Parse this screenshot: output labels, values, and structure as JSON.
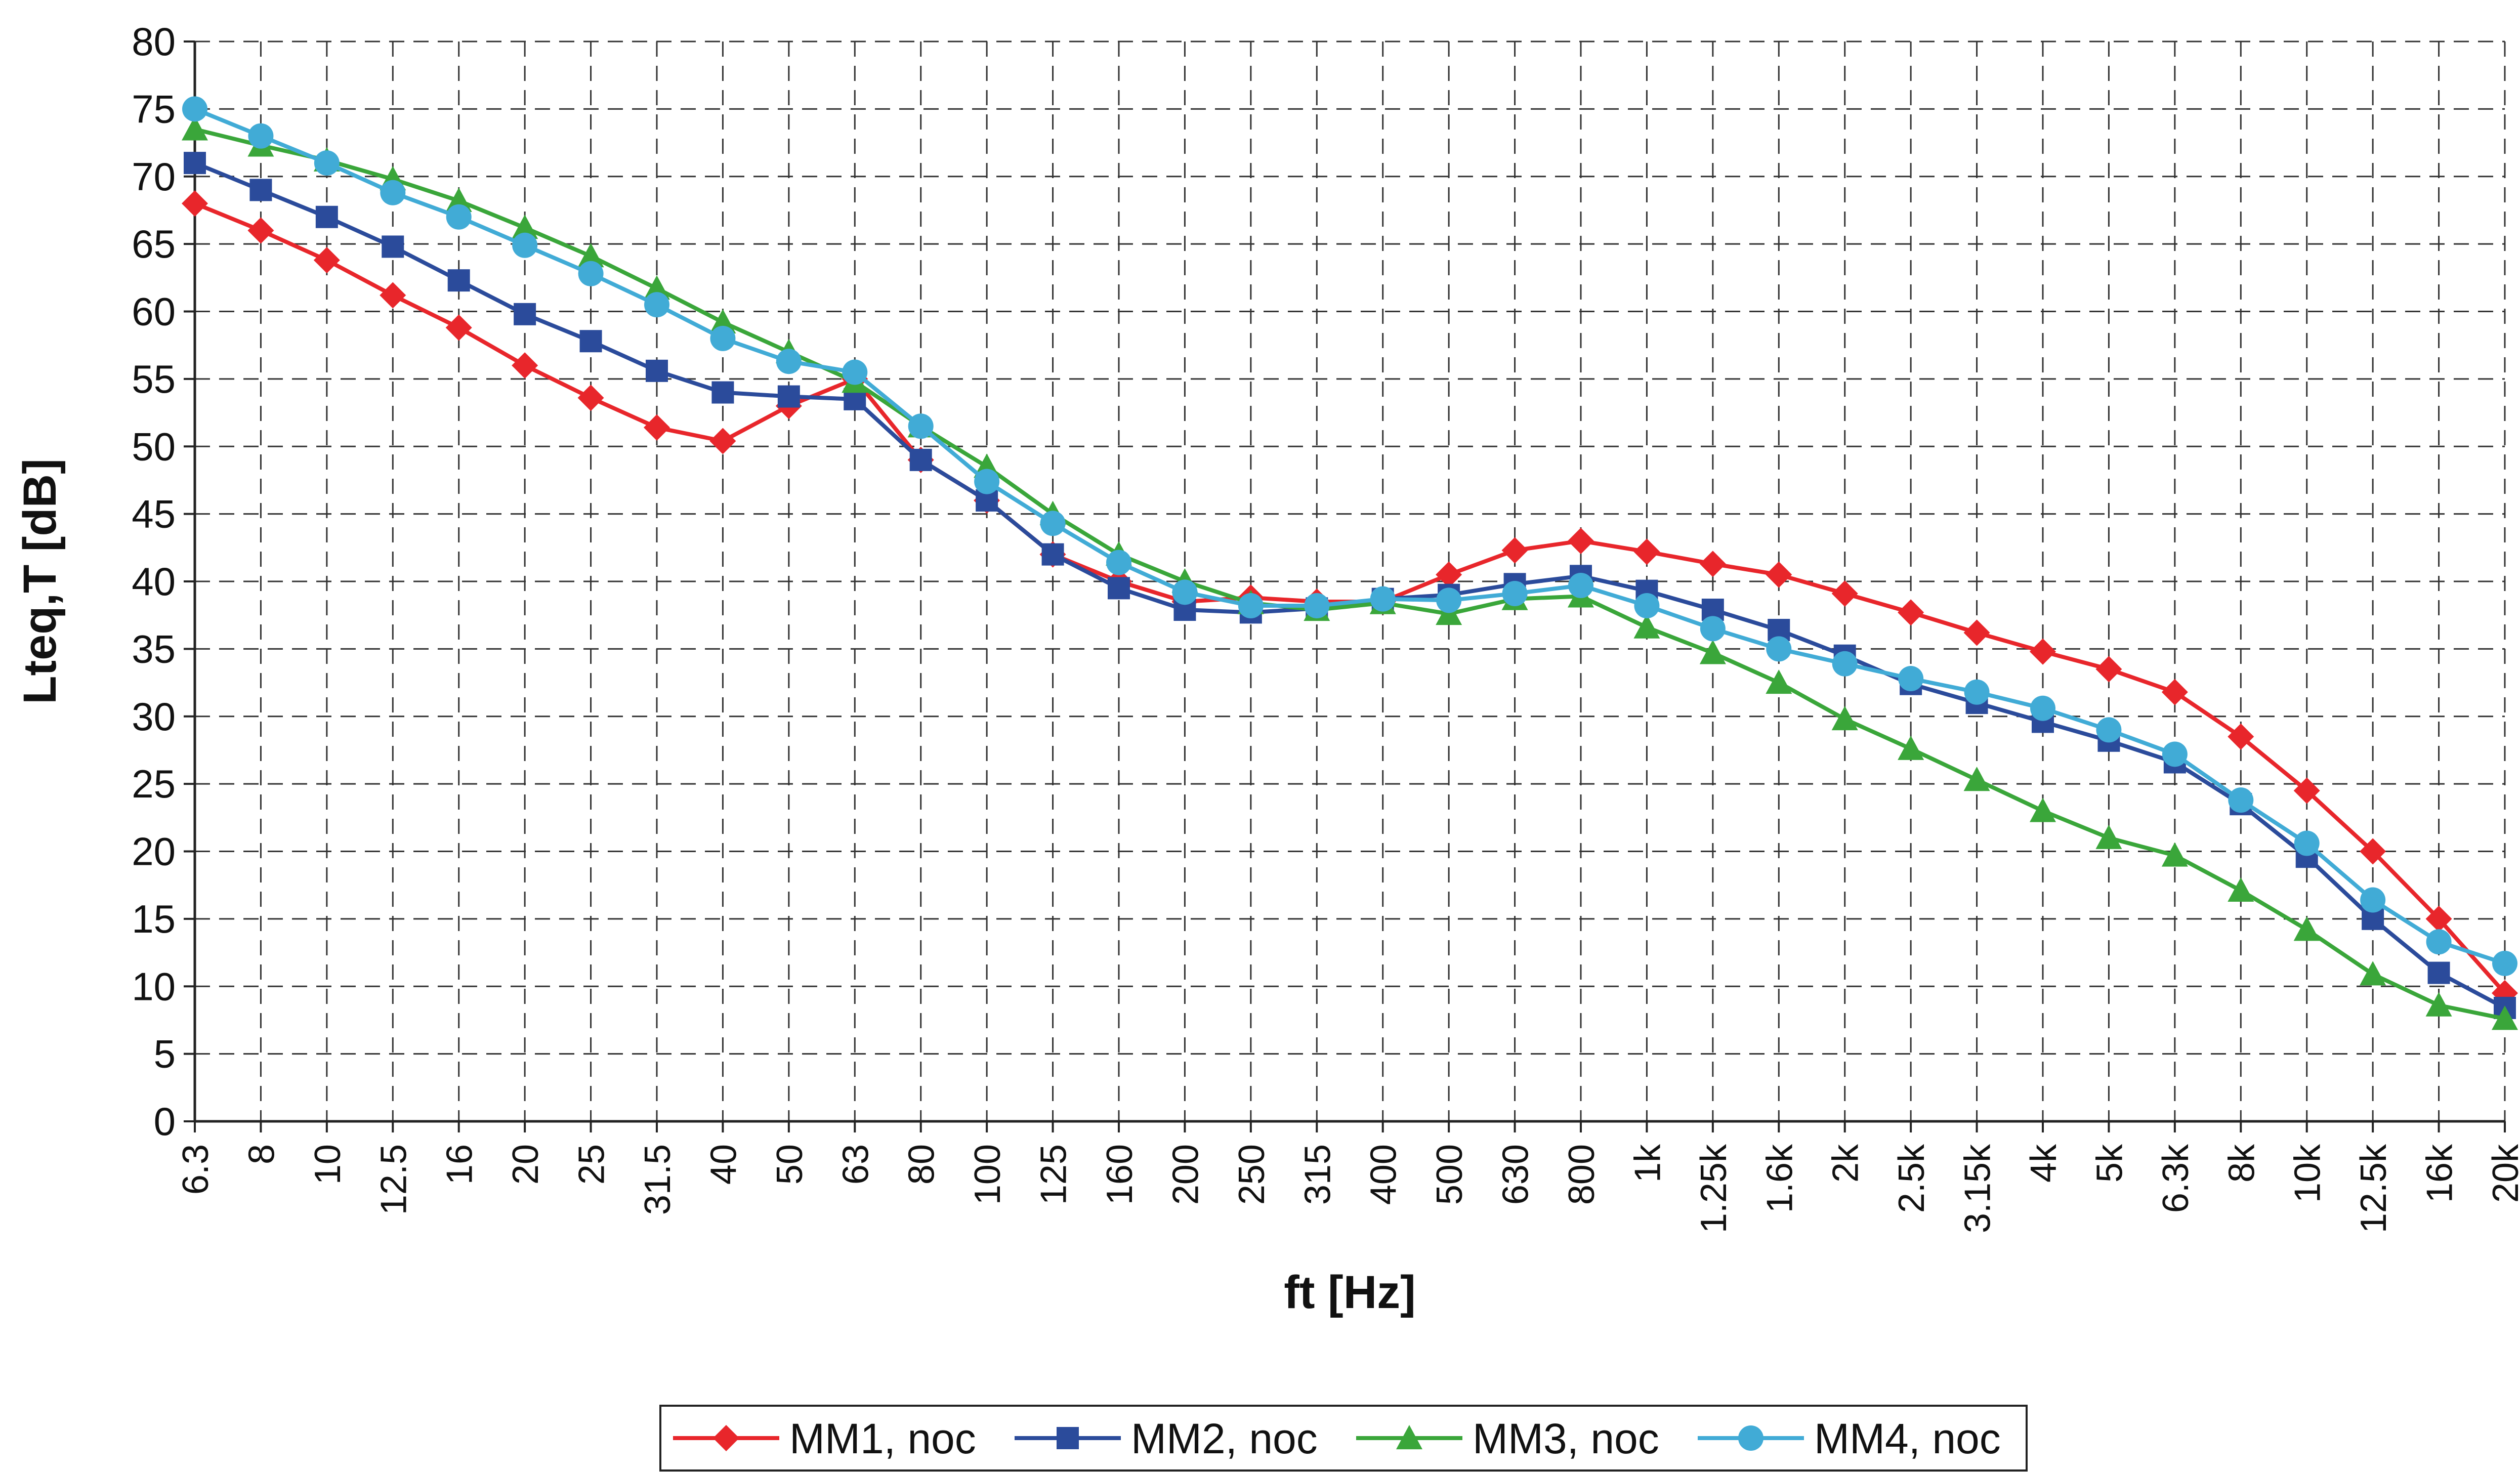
{
  "chart_data": {
    "type": "line",
    "title": "",
    "xlabel": "ft [Hz]",
    "ylabel": "Lteq,T [dB]",
    "ylim": [
      0,
      80
    ],
    "yticks": [
      0,
      5,
      10,
      15,
      20,
      25,
      30,
      35,
      40,
      45,
      50,
      55,
      60,
      65,
      70,
      75,
      80
    ],
    "grid": true,
    "legend_position": "bottom",
    "categories": [
      "6.3",
      "8",
      "10",
      "12.5",
      "16",
      "20",
      "25",
      "31.5",
      "40",
      "50",
      "63",
      "80",
      "100",
      "125",
      "160",
      "200",
      "250",
      "315",
      "400",
      "500",
      "630",
      "800",
      "1k",
      "1.25k",
      "1.6k",
      "2k",
      "2.5k",
      "3.15k",
      "4k",
      "5k",
      "6.3k",
      "8k",
      "10k",
      "12.5k",
      "16k",
      "20k"
    ],
    "series": [
      {
        "name": "MM1, noc",
        "color": "#e8262b",
        "marker": "diamond",
        "values": [
          68,
          66,
          63.8,
          61.2,
          58.8,
          56,
          53.6,
          51.4,
          50.4,
          53,
          55,
          49,
          46,
          42,
          40,
          38.5,
          38.8,
          38.5,
          38.5,
          40.5,
          42.3,
          43,
          42.2,
          41.3,
          40.5,
          39.1,
          37.7,
          36.2,
          34.8,
          33.5,
          31.8,
          28.5,
          24.5,
          20,
          15,
          9.5
        ]
      },
      {
        "name": "MM2, noc",
        "color": "#2b4b9b",
        "marker": "square",
        "values": [
          71,
          69,
          67,
          64.8,
          62.3,
          59.8,
          57.8,
          55.6,
          54,
          53.7,
          53.5,
          49,
          46,
          42,
          39.5,
          37.9,
          37.7,
          38,
          38.7,
          39,
          39.8,
          40.4,
          39.3,
          37.9,
          36.4,
          34.5,
          32.4,
          31,
          29.6,
          28.2,
          26.6,
          23.5,
          19.6,
          15,
          11,
          8.4
        ]
      },
      {
        "name": "MM3, noc",
        "color": "#3aa63a",
        "marker": "triangle",
        "values": [
          73.5,
          72.3,
          71.2,
          69.8,
          68.2,
          66.2,
          64.1,
          61.7,
          59.2,
          57,
          54.8,
          51.5,
          48.5,
          45,
          42,
          40,
          38.4,
          37.9,
          38.4,
          37.6,
          38.7,
          38.9,
          36.6,
          34.7,
          32.5,
          29.8,
          27.6,
          25.3,
          23,
          21,
          19.7,
          17.1,
          14.2,
          10.9,
          8.6,
          7.6
        ]
      },
      {
        "name": "MM4, noc",
        "color": "#41abd6",
        "marker": "circle",
        "values": [
          75,
          73,
          71,
          68.8,
          67,
          64.9,
          62.8,
          60.5,
          58,
          56.3,
          55.5,
          51.5,
          47.4,
          44.3,
          41.4,
          39.2,
          38.2,
          38.2,
          38.7,
          38.6,
          39.1,
          39.7,
          38.2,
          36.5,
          35,
          33.9,
          32.8,
          31.8,
          30.6,
          29,
          27.2,
          23.8,
          20.6,
          16.4,
          13.3,
          11.7
        ]
      }
    ]
  }
}
